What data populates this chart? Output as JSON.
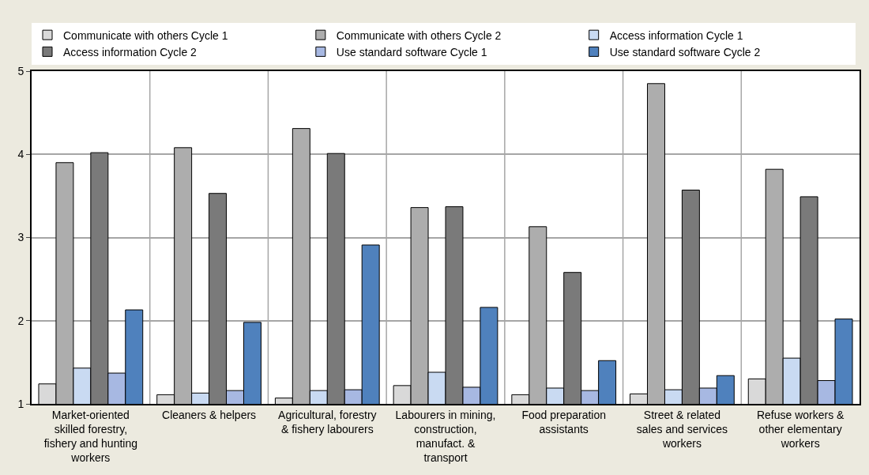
{
  "chart_data": {
    "type": "bar",
    "categories": [
      "Market-oriented\nskilled forestry,\nfishery and hunting\nworkers",
      "Cleaners & helpers",
      "Agricultural, forestry\n& fishery labourers",
      "Labourers in mining,\nconstruction,\nmanufact. &\ntransport",
      "Food preparation\nassistants",
      "Street & related\nsales and services\nworkers",
      "Refuse workers &\nother elementary\nworkers"
    ],
    "series": [
      {
        "name": "Communicate with others Cycle 1",
        "color": "#d9d9d9",
        "values": [
          1.24,
          1.11,
          1.07,
          1.22,
          1.11,
          1.12,
          1.3
        ]
      },
      {
        "name": "Communicate with others Cycle 2",
        "color": "#adadad",
        "values": [
          3.9,
          4.08,
          4.31,
          3.36,
          3.13,
          4.85,
          3.82
        ]
      },
      {
        "name": "Access information Cycle 1",
        "color": "#c9daf2",
        "values": [
          1.43,
          1.13,
          1.16,
          1.38,
          1.19,
          1.17,
          1.55
        ]
      },
      {
        "name": "Access information Cycle 2",
        "color": "#7a7a7a",
        "values": [
          4.02,
          3.53,
          4.01,
          3.37,
          2.58,
          3.57,
          3.49
        ]
      },
      {
        "name": "Use standard software Cycle 1",
        "color": "#a7b8e2",
        "values": [
          1.37,
          1.16,
          1.17,
          1.2,
          1.16,
          1.19,
          1.28
        ]
      },
      {
        "name": "Use standard software Cycle 2",
        "color": "#4f81bd",
        "values": [
          2.13,
          1.98,
          2.91,
          2.16,
          1.52,
          1.34,
          2.02
        ]
      }
    ],
    "ylim": [
      1,
      5
    ],
    "yticks": [
      1,
      2,
      3,
      4,
      5
    ],
    "grid": true,
    "legend": "top"
  }
}
